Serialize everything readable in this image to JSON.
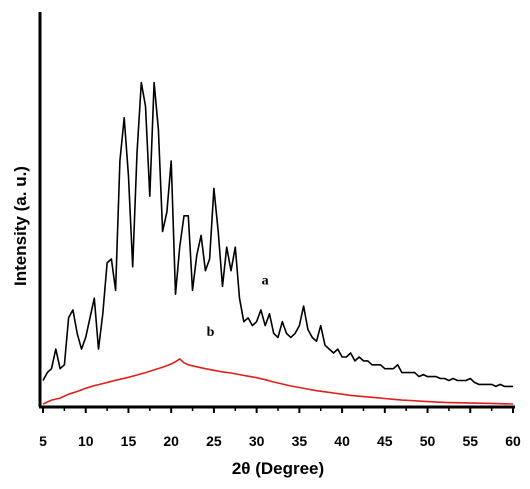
{
  "chart_data": {
    "type": "line",
    "xlabel": "2θ (Degree)",
    "ylabel": "Intensity (a. u.)",
    "xlim": [
      5,
      60
    ],
    "ylim": [
      0,
      100
    ],
    "x_ticks": [
      "5",
      "10",
      "15",
      "20",
      "25",
      "30",
      "35",
      "40",
      "45",
      "50",
      "55",
      "60"
    ],
    "y_ticks_shown": false,
    "grid": false,
    "legend": "none",
    "annotations": [
      {
        "text": "a",
        "x": 31.0,
        "y": 30.5
      },
      {
        "text": "b",
        "x": 24.6,
        "y": 17.3
      }
    ],
    "series": [
      {
        "color": "#000000",
        "points": [
          [
            5.0,
            6.0
          ],
          [
            5.5,
            8.0
          ],
          [
            6.0,
            9.0
          ],
          [
            6.5,
            14.0
          ],
          [
            7.0,
            9.0
          ],
          [
            7.5,
            10.0
          ],
          [
            8.0,
            22.0
          ],
          [
            8.5,
            24.0
          ],
          [
            9.0,
            18.0
          ],
          [
            9.5,
            14.0
          ],
          [
            10.0,
            17.0
          ],
          [
            10.5,
            22.0
          ],
          [
            11.0,
            27.0
          ],
          [
            11.5,
            14.0
          ],
          [
            12.0,
            23.0
          ],
          [
            12.5,
            36.0
          ],
          [
            13.0,
            37.0
          ],
          [
            13.5,
            29.0
          ],
          [
            14.0,
            62.0
          ],
          [
            14.5,
            73.0
          ],
          [
            15.0,
            58.0
          ],
          [
            15.5,
            35.0
          ],
          [
            16.0,
            64.0
          ],
          [
            16.5,
            82.0
          ],
          [
            17.0,
            76.0
          ],
          [
            17.5,
            53.0
          ],
          [
            18.0,
            82.0
          ],
          [
            18.5,
            70.0
          ],
          [
            19.0,
            44.0
          ],
          [
            19.5,
            49.0
          ],
          [
            20.0,
            62.0
          ],
          [
            20.5,
            28.0
          ],
          [
            21.0,
            40.0
          ],
          [
            21.5,
            48.0
          ],
          [
            22.0,
            48.0
          ],
          [
            22.5,
            29.0
          ],
          [
            23.0,
            38.0
          ],
          [
            23.5,
            43.0
          ],
          [
            24.0,
            34.0
          ],
          [
            24.5,
            37.0
          ],
          [
            25.0,
            55.0
          ],
          [
            25.5,
            44.0
          ],
          [
            26.0,
            30.0
          ],
          [
            26.5,
            40.0
          ],
          [
            27.0,
            34.0
          ],
          [
            27.5,
            40.0
          ],
          [
            28.0,
            27.0
          ],
          [
            28.5,
            21.0
          ],
          [
            29.0,
            22.0
          ],
          [
            29.5,
            20.0
          ],
          [
            30.0,
            21.0
          ],
          [
            30.5,
            24.0
          ],
          [
            31.0,
            20.0
          ],
          [
            31.5,
            23.0
          ],
          [
            32.0,
            18.0
          ],
          [
            32.5,
            17.0
          ],
          [
            33.0,
            21.0
          ],
          [
            33.5,
            18.0
          ],
          [
            34.0,
            17.0
          ],
          [
            34.5,
            18.0
          ],
          [
            35.0,
            20.0
          ],
          [
            35.5,
            25.0
          ],
          [
            36.0,
            19.0
          ],
          [
            36.5,
            17.0
          ],
          [
            37.0,
            16.0
          ],
          [
            37.5,
            20.0
          ],
          [
            38.0,
            15.0
          ],
          [
            38.5,
            14.0
          ],
          [
            39.0,
            13.0
          ],
          [
            39.5,
            14.0
          ],
          [
            40.0,
            12.0
          ],
          [
            40.5,
            12.0
          ],
          [
            41.0,
            13.0
          ],
          [
            41.5,
            11.0
          ],
          [
            42.0,
            12.0
          ],
          [
            42.5,
            11.0
          ],
          [
            43.0,
            11.0
          ],
          [
            43.5,
            10.0
          ],
          [
            44.0,
            10.0
          ],
          [
            44.5,
            10.0
          ],
          [
            45.0,
            9.0
          ],
          [
            45.5,
            9.0
          ],
          [
            46.0,
            9.0
          ],
          [
            46.5,
            10.0
          ],
          [
            47.0,
            8.0
          ],
          [
            47.5,
            8.0
          ],
          [
            48.0,
            8.0
          ],
          [
            48.5,
            8.0
          ],
          [
            49.0,
            7.0
          ],
          [
            49.5,
            7.5
          ],
          [
            50.0,
            7.0
          ],
          [
            50.5,
            7.0
          ],
          [
            51.0,
            7.0
          ],
          [
            51.5,
            6.5
          ],
          [
            52.0,
            6.5
          ],
          [
            52.5,
            6.0
          ],
          [
            53.0,
            6.5
          ],
          [
            53.5,
            6.0
          ],
          [
            54.0,
            6.0
          ],
          [
            54.5,
            6.0
          ],
          [
            55.0,
            6.5
          ],
          [
            55.5,
            5.5
          ],
          [
            56.0,
            5.0
          ],
          [
            56.5,
            5.0
          ],
          [
            57.0,
            5.0
          ],
          [
            57.5,
            5.0
          ],
          [
            58.0,
            4.5
          ],
          [
            58.5,
            5.0
          ],
          [
            59.0,
            4.5
          ],
          [
            59.5,
            4.5
          ],
          [
            60.0,
            4.5
          ]
        ]
      },
      {
        "color": "#e0201b",
        "points": [
          [
            5.0,
            0.0
          ],
          [
            6.0,
            1.0
          ],
          [
            7.0,
            1.5
          ],
          [
            8.0,
            2.5
          ],
          [
            9.0,
            3.2
          ],
          [
            10.0,
            4.0
          ],
          [
            11.0,
            4.7
          ],
          [
            12.0,
            5.2
          ],
          [
            13.0,
            5.8
          ],
          [
            14.0,
            6.3
          ],
          [
            15.0,
            6.8
          ],
          [
            16.0,
            7.4
          ],
          [
            17.0,
            8.0
          ],
          [
            18.0,
            8.7
          ],
          [
            19.0,
            9.4
          ],
          [
            20.0,
            10.2
          ],
          [
            20.5,
            10.8
          ],
          [
            21.0,
            11.5
          ],
          [
            21.5,
            10.5
          ],
          [
            22.0,
            10.0
          ],
          [
            23.0,
            9.5
          ],
          [
            24.0,
            9.0
          ],
          [
            25.0,
            8.6
          ],
          [
            26.0,
            8.2
          ],
          [
            27.0,
            7.9
          ],
          [
            28.0,
            7.5
          ],
          [
            29.0,
            7.1
          ],
          [
            30.0,
            6.7
          ],
          [
            31.0,
            6.2
          ],
          [
            32.0,
            5.6
          ],
          [
            33.0,
            5.1
          ],
          [
            34.0,
            4.6
          ],
          [
            35.0,
            4.2
          ],
          [
            36.0,
            3.8
          ],
          [
            37.0,
            3.4
          ],
          [
            38.0,
            3.1
          ],
          [
            39.0,
            2.8
          ],
          [
            40.0,
            2.5
          ],
          [
            41.0,
            2.2
          ],
          [
            42.0,
            2.0
          ],
          [
            43.0,
            1.8
          ],
          [
            44.0,
            1.6
          ],
          [
            45.0,
            1.4
          ],
          [
            46.0,
            1.2
          ],
          [
            47.0,
            1.0
          ],
          [
            48.0,
            0.9
          ],
          [
            50.0,
            0.6
          ],
          [
            52.0,
            0.4
          ],
          [
            54.0,
            0.3
          ],
          [
            56.0,
            0.2
          ],
          [
            58.0,
            0.1
          ],
          [
            60.0,
            0.0
          ]
        ]
      }
    ]
  }
}
